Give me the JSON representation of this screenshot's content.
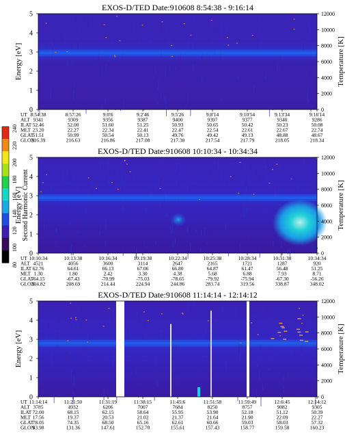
{
  "colorbar": {
    "label": "Second Harmonic Current",
    "ticks": [
      "80",
      "100",
      "120",
      "140",
      "160",
      "180",
      "200",
      "220",
      "240"
    ],
    "colors": [
      "#000000",
      "#3a0a5a",
      "#3b1fb0",
      "#1f4fe0",
      "#1aa8e6",
      "#18d7c8",
      "#22d04a",
      "#a8e01c",
      "#f0e818",
      "#f08a14",
      "#e02a14"
    ]
  },
  "chart_data": [
    {
      "type": "heatmap",
      "title": "EXOS-D/TED   Date:910608   8:54:38 - 9:16:14",
      "ylabel": "Energy [eV]",
      "y2label": "Temperature [K]",
      "ylim": [
        0,
        5
      ],
      "y2lim": [
        0,
        12000
      ],
      "yticks": [
        "0",
        "1",
        "2",
        "3",
        "4",
        "5"
      ],
      "y2ticks": [
        "0",
        "2000",
        "4000",
        "6000",
        "8000",
        "10000",
        "12000"
      ],
      "row_labels": [
        "UT",
        "ALT",
        "ILAT",
        "MLT",
        "GLAT",
        "GLON"
      ],
      "columns": [
        [
          "8:54:38",
          "9341",
          "52.46",
          "23.20",
          "51.51",
          "216.39"
        ],
        [
          "8:57:26",
          "9309",
          "52.00",
          "22.27",
          "50.99",
          "216.63"
        ],
        [
          "9:0'6",
          "9356",
          "51.60",
          "22.34",
          "50.54",
          "216.86"
        ],
        [
          "9:2'46",
          "9387",
          "51.25",
          "22.41",
          "50.13",
          "217.08"
        ],
        [
          "9:5'26",
          "9400",
          "50.93",
          "22.47",
          "49.76",
          "217.30"
        ],
        [
          "9:8'14",
          "9397",
          "50.65",
          "22.54",
          "49.42",
          "217.54"
        ],
        [
          "9:10'54",
          "9377",
          "50.42",
          "22.61",
          "49.13",
          "217.79"
        ],
        [
          "9:13'34",
          "9340",
          "50.23",
          "22.67",
          "48.88",
          "218.05"
        ],
        [
          "9:16'14",
          "9286",
          "50.08",
          "22.74",
          "48.67",
          "218.34"
        ]
      ],
      "features": [
        {
          "band_energy_eV": 2.95,
          "intensity": 130,
          "description": "continuous band"
        }
      ]
    },
    {
      "type": "heatmap",
      "title": "EXOS-D/TED   Date:910608   10:10:34 - 10:34:34",
      "ylabel": "Energy [eV]",
      "y2label": "Temperature [K]",
      "ylim": [
        0,
        5
      ],
      "y2lim": [
        0,
        12000
      ],
      "yticks": [
        "0",
        "1",
        "2",
        "3",
        "4",
        "5"
      ],
      "y2ticks": [
        "0",
        "2000",
        "4000",
        "6000",
        "8000",
        "10000",
        "12000"
      ],
      "row_labels": [
        "UT",
        "ALT",
        "ILAT",
        "MLT",
        "GLAT",
        "GLON"
      ],
      "columns": [
        [
          "10:10:34",
          "4521",
          "62.76",
          "1.30",
          "-64.15",
          "204.82"
        ],
        [
          "10:13:38",
          "4056",
          "64.61",
          "1.80",
          "-67.43",
          "208.69"
        ],
        [
          "10:16:34",
          "3600",
          "66.13",
          "2.42",
          "-70.99",
          "214.44"
        ],
        [
          "10:19:38",
          "3114",
          "67.06",
          "3.30",
          "-75.03",
          "224.94"
        ],
        [
          "10:22:34",
          "2647",
          "66.80",
          "4.38",
          "-78.65",
          "244.86"
        ],
        [
          "10:25:38",
          "2165",
          "64.87",
          "5.68",
          "-79.92",
          "283.74"
        ],
        [
          "10:28:34",
          "1721",
          "61.47",
          "6.88",
          "-75.94",
          "319.56"
        ],
        [
          "10:31:38",
          "1287",
          "56.48",
          "7.93",
          "-67.30",
          "338.87"
        ],
        [
          "10:34:34",
          "920",
          "51.25",
          "8.71",
          "-56.26",
          "348.02"
        ]
      ],
      "features": [
        {
          "band_energy_eV": 2.9,
          "intensity": 150,
          "description": "band"
        },
        {
          "energy_eV": 1.6,
          "intensity": 190,
          "description": "hot region at end"
        }
      ]
    },
    {
      "type": "heatmap",
      "title": "EXOS-D/TED   Date:910608   11:14:14 - 12:14:12",
      "ylabel": "Energy [eV]",
      "y2label": "Temperature [K]",
      "ylim": [
        0,
        5
      ],
      "y2lim": [
        0,
        12000
      ],
      "yticks": [
        "0",
        "1",
        "2",
        "3",
        "4",
        "5"
      ],
      "y2ticks": [
        "0",
        "2000",
        "4000",
        "6000",
        "8000",
        "10000",
        "12000"
      ],
      "row_labels": [
        "UT",
        "ALT",
        "ILAT",
        "MLT",
        "GLAT",
        "GLON"
      ],
      "columns": [
        [
          "11:14:14",
          "3785",
          "72.00",
          "17.56",
          "78.05",
          "93.98"
        ],
        [
          "11:21:50",
          "4932",
          "68.15",
          "19.37",
          "74.35",
          "131.36"
        ],
        [
          "11:31:19",
          "6206",
          "62.15",
          "20.53",
          "68.50",
          "147.61"
        ],
        [
          "11:38:15",
          "7007",
          "58.64",
          "21.02",
          "65.16",
          "152.70"
        ],
        [
          "11:45:6",
          "7684",
          "55.95",
          "21.37",
          "62.61",
          "155.61"
        ],
        [
          "11:51:58",
          "8250",
          "53.90",
          "21.64",
          "60.66",
          "157.43"
        ],
        [
          "11:59:49",
          "8757",
          "52.18",
          "21.90",
          "59.03",
          "158.77"
        ],
        [
          "12:6:45",
          "9082",
          "51.12",
          "22.09",
          "58.03",
          "159.58"
        ],
        [
          "12:14:12",
          "9305",
          "50.39",
          "22.27",
          "57.32",
          "160.23"
        ]
      ],
      "features": [
        {
          "band_energy_eV": 2.8,
          "intensity": 140,
          "description": "band"
        }
      ]
    }
  ]
}
